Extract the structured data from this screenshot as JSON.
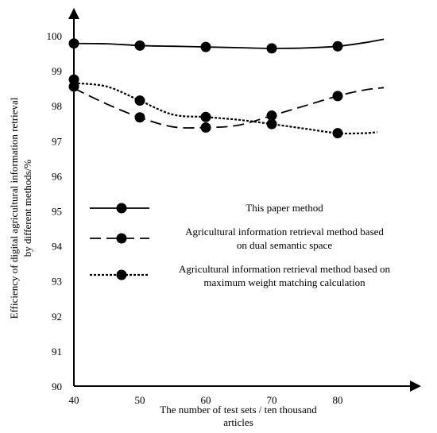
{
  "chart_data": {
    "type": "line",
    "title": "",
    "xlabel": "The number of test sets / ten thousand articles",
    "xlabel_lines": [
      "The number of test sets / ten thousand",
      "articles"
    ],
    "ylabel": "Efficiency of digital agricultural information retrieval by different methods/%",
    "ylabel_lines": [
      "Efficiency of digital agricultural information retrieval",
      "by different methods/%"
    ],
    "xlim": [
      40,
      89
    ],
    "ylim": [
      90,
      100.6
    ],
    "x_ticks": [
      40,
      50,
      60,
      70,
      80
    ],
    "y_ticks": [
      90,
      91,
      92,
      93,
      94,
      95,
      96,
      97,
      98,
      99,
      100
    ],
    "grid": false,
    "legend_position": "center",
    "series": [
      {
        "name": "This paper method",
        "legend_lines": [
          "This paper method"
        ],
        "style": "solid",
        "color": "#000000",
        "x": [
          40,
          50,
          60,
          70,
          80
        ],
        "y": [
          99.78,
          99.72,
          99.68,
          99.64,
          99.7
        ],
        "curve_x": [
          40,
          45,
          50,
          55,
          60,
          65,
          70,
          75,
          80,
          84,
          87
        ],
        "curve_y": [
          99.78,
          99.77,
          99.72,
          99.7,
          99.68,
          99.66,
          99.64,
          99.65,
          99.7,
          99.8,
          99.9
        ]
      },
      {
        "name": "Agricultural information retrieval method based on dual semantic space",
        "legend_lines": [
          "Agricultural information retrieval method based",
          "on dual semantic space"
        ],
        "style": "dashed",
        "color": "#000000",
        "x": [
          40,
          50,
          60,
          70,
          80
        ],
        "y": [
          98.75,
          97.67,
          97.38,
          97.72,
          98.28
        ],
        "curve_x": [
          40,
          45,
          50,
          55,
          60,
          65,
          70,
          75,
          80,
          84,
          87
        ],
        "curve_y": [
          98.5,
          98.05,
          97.67,
          97.4,
          97.38,
          97.45,
          97.72,
          98.0,
          98.28,
          98.45,
          98.52
        ]
      },
      {
        "name": "Agricultural information retrieval method based on maximum weight matching calculation",
        "legend_lines": [
          "Agricultural information retrieval method based on",
          "maximum weight matching calculation"
        ],
        "style": "dotted",
        "color": "#000000",
        "x": [
          40,
          50,
          60,
          70,
          80
        ],
        "y": [
          98.55,
          98.15,
          97.68,
          97.48,
          97.22
        ],
        "curve_x": [
          40,
          45,
          50,
          55,
          60,
          65,
          70,
          75,
          80,
          84,
          86
        ],
        "curve_y": [
          98.65,
          98.55,
          98.15,
          97.75,
          97.68,
          97.6,
          97.48,
          97.35,
          97.22,
          97.22,
          97.25
        ]
      }
    ]
  }
}
